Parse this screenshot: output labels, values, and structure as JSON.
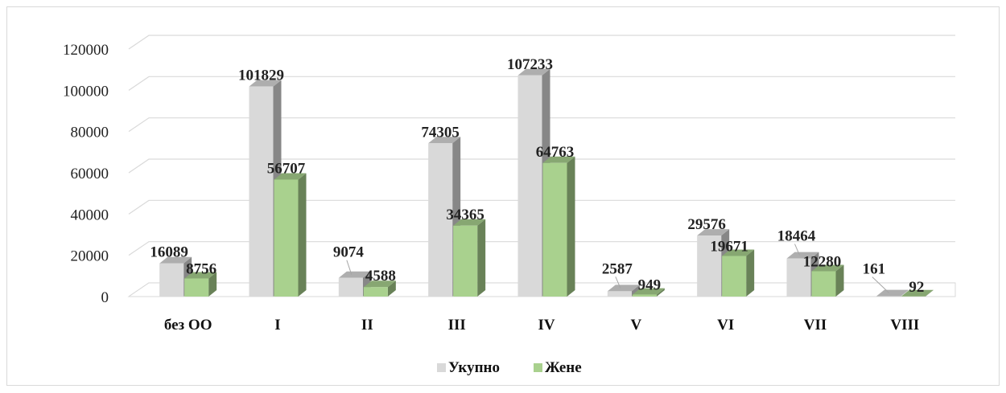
{
  "chart_data": {
    "type": "bar",
    "title": "",
    "xlabel": "",
    "ylabel": "",
    "categories": [
      "без ОО",
      "I",
      "II",
      "III",
      "IV",
      "V",
      "VI",
      "VII",
      "VIII"
    ],
    "series": [
      {
        "name": "Укупно",
        "values": [
          16089,
          101829,
          9074,
          74305,
          107233,
          2587,
          29576,
          18464,
          161
        ],
        "color": "#d9d9d9"
      },
      {
        "name": "Жене",
        "values": [
          8756,
          56707,
          4588,
          34365,
          64763,
          949,
          19671,
          12280,
          92
        ],
        "color": "#a9d18e"
      }
    ],
    "yticks": [
      0,
      20000,
      40000,
      60000,
      80000,
      100000,
      120000
    ],
    "ylim": [
      0,
      120000
    ],
    "grid": true,
    "legend_position": "bottom",
    "style": "3d-clustered-column"
  }
}
